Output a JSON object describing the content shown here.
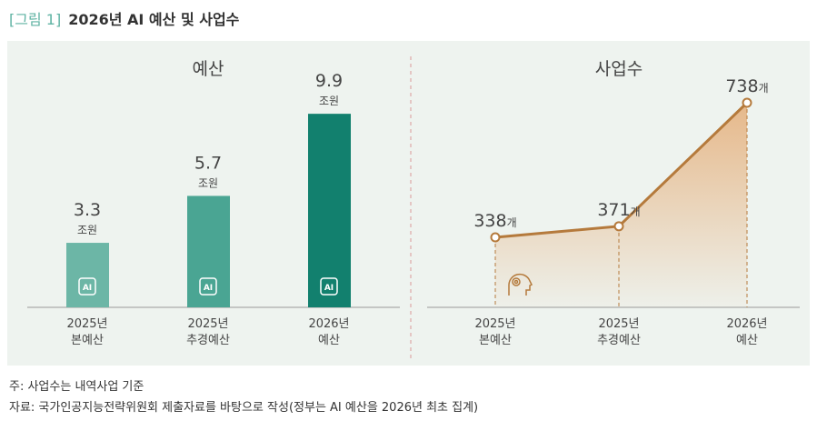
{
  "title": {
    "figure_label": "[그림 1]",
    "text": "2026년 AI 예산 및 사업수"
  },
  "chart_data": [
    {
      "type": "bar",
      "title": "예산",
      "categories": [
        "2025년\n본예산",
        "2025년\n추경예산",
        "2026년\n예산"
      ],
      "values": [
        3.3,
        5.7,
        9.9
      ],
      "unit": "조원",
      "colors": [
        "#6cb6a6",
        "#4aa593",
        "#12806e"
      ],
      "icon": "ai-chip-icon"
    },
    {
      "type": "area",
      "title": "사업수",
      "categories": [
        "2025년\n본예산",
        "2025년\n추경예산",
        "2026년\n예산"
      ],
      "values": [
        338,
        371,
        738
      ],
      "unit": "개",
      "colors": [
        "#b57a3c"
      ],
      "icon": "ai-head-icon"
    }
  ],
  "notes": [
    "주: 사업수는 내역사업 기준",
    "자료: 국가인공지능전략위원회 제출자료를 바탕으로 작성(정부는 AI 예산을 2026년 최초 집계)"
  ]
}
